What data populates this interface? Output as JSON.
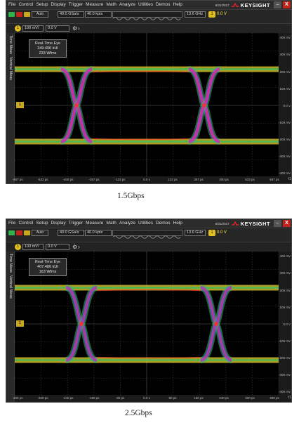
{
  "menu": [
    "File",
    "Control",
    "Setup",
    "Display",
    "Trigger",
    "Measure",
    "Math",
    "Analyze",
    "Utilities",
    "Demos",
    "Help"
  ],
  "brand": "KEYSIGHT",
  "window": {
    "minimize_icon": "minimize-icon",
    "close_icon": "close-icon",
    "minimize": "–",
    "close": "X"
  },
  "screens": [
    {
      "caption": "1.5Gbps",
      "clock_date": "8/31/2017",
      "toolbar": {
        "auto": "Auto",
        "sample_rate": "40.0 GSa/s",
        "points": "40.0 kpts",
        "bandwidth": "13.6 GHz",
        "trigger_channel": "1",
        "trigger_level": "0.0 V"
      },
      "channel": {
        "number": "1",
        "scale": "100 mV/",
        "offset": "0.0 V"
      },
      "side_tabs": [
        "Time Meas",
        "Vertical Meas"
      ],
      "eye_box": {
        "title": "Real-Time Eye",
        "line1": "349.490 kUI",
        "line2": "233 Wfms"
      },
      "trigger_marker": "1",
      "y_ticks": [
        "400 mV",
        "300 mV",
        "200 mV",
        "100 mV",
        "0.0 V",
        "-100 mV",
        "-200 mV",
        "-300 mV",
        "-400 mV"
      ],
      "x_ticks": [
        "-667 ps",
        "-533 ps",
        "-400 ps",
        "-267 ps",
        "-133 ps",
        "0.0 s",
        "133 ps",
        "267 ps",
        "400 ps",
        "533 ps",
        "667 ps"
      ],
      "x_end_label": "f1",
      "colors": {
        "rail": "#e8d030",
        "eye": "#30c060",
        "core": "#c030e0",
        "hot": "#ff3020"
      }
    },
    {
      "caption": "2.5Gbps",
      "clock_date": "8/31/2017",
      "toolbar": {
        "auto": "Auto",
        "sample_rate": "40.0 GSa/s",
        "points": "40.0 kpts",
        "bandwidth": "13.6 GHz",
        "trigger_channel": "1",
        "trigger_level": "0.0 V"
      },
      "channel": {
        "number": "1",
        "scale": "100 mV/",
        "offset": "0.0 V"
      },
      "side_tabs": [
        "Time Meas",
        "Vertical Meas"
      ],
      "eye_box": {
        "title": "Real-Time Eye",
        "line1": "407.486 kUI",
        "line2": "163 Wfms"
      },
      "trigger_marker": "1",
      "y_ticks": [
        "400 mV",
        "300 mV",
        "200 mV",
        "100 mV",
        "0.0 V",
        "-100 mV",
        "-200 mV",
        "-300 mV",
        "-400 mV"
      ],
      "x_ticks": [
        "-400 ps",
        "-320 ps",
        "-240 ps",
        "-160 ps",
        "-80 ps",
        "0.0 s",
        "80 ps",
        "160 ps",
        "240 ps",
        "320 ps",
        "400 ps"
      ],
      "x_end_label": "f1",
      "colors": {
        "rail": "#e8d030",
        "eye": "#30c060",
        "core": "#9040e0",
        "hot": "#ff3020"
      }
    }
  ]
}
